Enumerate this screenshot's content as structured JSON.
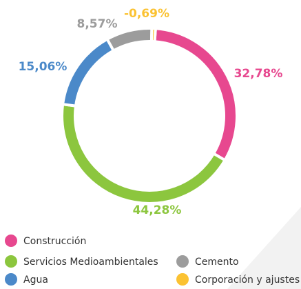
{
  "chart_data": {
    "type": "donut",
    "categories": [
      "Construcción",
      "Servicios Medioambientales",
      "Agua",
      "Cemento",
      "Corporación y ajustes"
    ],
    "values": [
      32.78,
      44.28,
      15.06,
      8.57,
      -0.69
    ],
    "value_labels": [
      "32,78%",
      "44,28%",
      "15,06%",
      "8,57%",
      "-0,69%"
    ],
    "colors": [
      "#e7488f",
      "#8cc63e",
      "#4b89c9",
      "#9c9c9c",
      "#fbc232"
    ],
    "legend": "bottom"
  }
}
